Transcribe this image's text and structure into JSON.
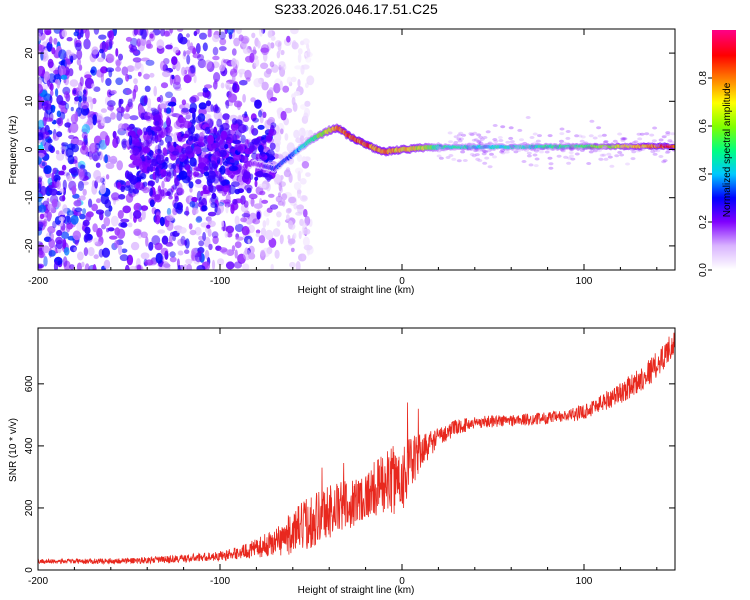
{
  "figure_title": "S233.2026.046.17.51.C25",
  "colors": {
    "snr_line": "#e8281e",
    "frame": "#000000",
    "background": "#ffffff"
  },
  "chart_data": [
    {
      "type": "heatmap",
      "title": "S233.2026.046.17.51.C25",
      "xlabel": "Height of straight line (km)",
      "ylabel": "Frequency (Hz)",
      "xlim": [
        -200,
        150
      ],
      "ylim": [
        -25,
        25
      ],
      "x_ticks": [
        -200,
        -100,
        0,
        100
      ],
      "y_ticks": [
        -20,
        -10,
        0,
        10,
        20
      ],
      "colorbar": {
        "label": "Normalized spectral amplitude",
        "range": [
          0,
          1
        ],
        "ticks": [
          0.0,
          0.2,
          0.4,
          0.6,
          0.8
        ],
        "tick_labels": [
          "0.0",
          "0.2",
          "0.4",
          "0.6",
          "0.8"
        ],
        "colormap": [
          "#ffffff",
          "#d9b3ff",
          "#8000ff",
          "#0000ff",
          "#00c8ff",
          "#00ff80",
          "#80ff00",
          "#ffff00",
          "#ff8000",
          "#ff0000",
          "#ff0080"
        ]
      },
      "ridge": {
        "x": [
          -80,
          -70,
          -60,
          -50,
          -40,
          -35,
          -30,
          -20,
          -10,
          0,
          10,
          20,
          50,
          100,
          150
        ],
        "freq": [
          -3,
          -4,
          -1,
          2,
          4,
          4.5,
          3,
          1,
          -0.5,
          0,
          0.3,
          0.5,
          0.5,
          0.6,
          0.7
        ],
        "amplitude": [
          0.2,
          0.3,
          0.35,
          0.5,
          0.7,
          0.8,
          0.85,
          0.85,
          0.8,
          0.75,
          0.7,
          0.5,
          0.45,
          0.55,
          0.9
        ]
      },
      "noise_amplitude_by_x": {
        "x": [
          -200,
          -150,
          -100,
          -75,
          -50
        ],
        "amplitude": [
          0.25,
          0.22,
          0.2,
          0.12,
          0.05
        ]
      }
    },
    {
      "type": "line",
      "xlabel": "Height of straight line (km)",
      "ylabel": "SNR (10 * v/v)",
      "xlim": [
        -200,
        150
      ],
      "ylim": [
        0,
        780
      ],
      "x_ticks": [
        -200,
        -100,
        0,
        100
      ],
      "y_ticks": [
        0,
        200,
        400,
        600
      ],
      "series": [
        {
          "name": "SNR",
          "x": [
            -200,
            -175,
            -150,
            -125,
            -100,
            -90,
            -80,
            -70,
            -60,
            -50,
            -40,
            -30,
            -20,
            -10,
            0,
            10,
            20,
            30,
            40,
            50,
            60,
            70,
            80,
            90,
            100,
            110,
            120,
            130,
            140,
            150
          ],
          "values": [
            28,
            28,
            30,
            35,
            45,
            55,
            70,
            90,
            120,
            160,
            190,
            210,
            240,
            280,
            300,
            380,
            430,
            460,
            475,
            480,
            482,
            485,
            490,
            495,
            510,
            540,
            570,
            610,
            660,
            740
          ],
          "noise_amplitude": [
            8,
            8,
            10,
            12,
            15,
            20,
            30,
            45,
            70,
            90,
            90,
            80,
            80,
            100,
            120,
            60,
            30,
            25,
            20,
            20,
            20,
            20,
            20,
            20,
            25,
            30,
            35,
            40,
            45,
            40
          ]
        }
      ],
      "spikes": [
        {
          "x": 3,
          "value": 540
        },
        {
          "x": 9,
          "value": 520
        },
        {
          "x": -32,
          "value": 345
        },
        {
          "x": -44,
          "value": 330
        }
      ]
    }
  ]
}
